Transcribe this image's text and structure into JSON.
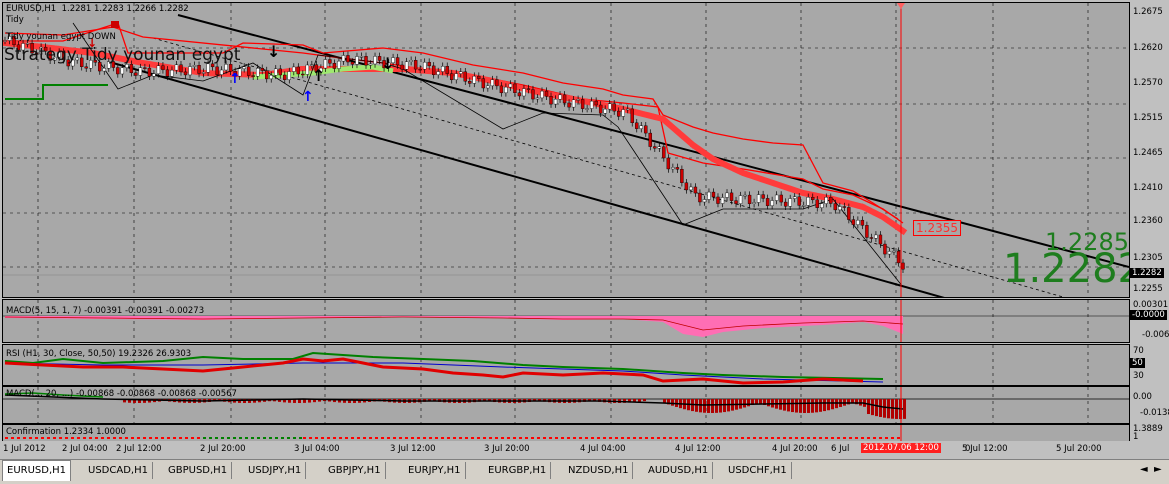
{
  "window": {
    "symbol_caption": "EURUSD,H1",
    "ohlc": "1.2281 1.2283 1.2266 1.2282"
  },
  "overlay": {
    "indicator_line1": "Tidy",
    "indicator_line2": "Tidy younan egypt   DOWN",
    "strategy_title": "Strategy  Tidy younan egypt"
  },
  "price": {
    "current": "1.2282",
    "big_prev": "1.2285",
    "big_current": "1.2282",
    "level_box": "1.2355",
    "scale": [
      "1.2675",
      "1.2620",
      "1.2570",
      "1.2515",
      "1.2465",
      "1.2410",
      "1.2360",
      "1.2305",
      "1.2255"
    ]
  },
  "macd1": {
    "label": "MACD(5, 15, 1, 7) -0.00391 -0.00391 -0.00273",
    "scale": [
      "0.00301",
      "-0.0000",
      "-0.00608"
    ]
  },
  "rsi": {
    "label": "RSI (H1, 30, Close, 50,50) 19.2326 26.9303",
    "scale": [
      "70",
      "50",
      "30"
    ]
  },
  "macd2": {
    "label": "MACD(... 20, ...) -0.00868 -0.00868 -0.00868 -0.00567",
    "scale": [
      "0.00",
      "-0.01385"
    ]
  },
  "confirm": {
    "label": "Confirmation 1.2334 1.0000",
    "scale": [
      "1.3889",
      "1"
    ]
  },
  "xaxis": {
    "labels": [
      "1 Jul 2012",
      "2 Jul 04:00",
      "2 Jul 12:00",
      "2 Jul 20:00",
      "3 Jul 04:00",
      "3 Jul 12:00",
      "3 Jul 20:00",
      "4 Jul 04:00",
      "4 Jul 12:00",
      "4 Jul 20:00",
      "5 Jul 04:00",
      "5 Jul 12:00",
      "5 Jul 20:00",
      "6 Jul",
      "0"
    ],
    "cursor_time": "2012.07.06 12:00"
  },
  "tabs": [
    "EURUSD,H1",
    "USDCAD,H1",
    "GBPUSD,H1",
    "USDJPY,H1",
    "GBPJPY,H1",
    "EURJPY,H1",
    "EURGBP,H1",
    "NZDUSD,H1",
    "AUDUSD,H1",
    "USDCHF,H1"
  ],
  "colors": {
    "bull": "#ffffff",
    "bear": "#cc0000",
    "band": "#ff0000",
    "channel": "#000000",
    "macd_hist": "#ff6eb4",
    "rsi_main": "#e00000",
    "rsi_signal": "#0000cc",
    "rsi_mid": "#008000",
    "big_price": "#1e7d1e"
  },
  "chart_data": {
    "type": "candlestick",
    "title": "EURUSD,H1",
    "ylim": [
      1.223,
      1.27
    ],
    "x": [
      "1 Jul 2012",
      "2 Jul 04:00",
      "2 Jul 12:00",
      "2 Jul 20:00",
      "3 Jul 04:00",
      "3 Jul 12:00",
      "3 Jul 20:00",
      "4 Jul 04:00",
      "4 Jul 12:00",
      "4 Jul 20:00",
      "5 Jul 04:00",
      "5 Jul 12:00",
      "5 Jul 20:00",
      "6 Jul"
    ],
    "close": [
      1.264,
      1.2605,
      1.259,
      1.2595,
      1.2585,
      1.261,
      1.26,
      1.257,
      1.2545,
      1.2525,
      1.239,
      1.2385,
      1.238,
      1.2282
    ],
    "current_price": 1.2282
  }
}
